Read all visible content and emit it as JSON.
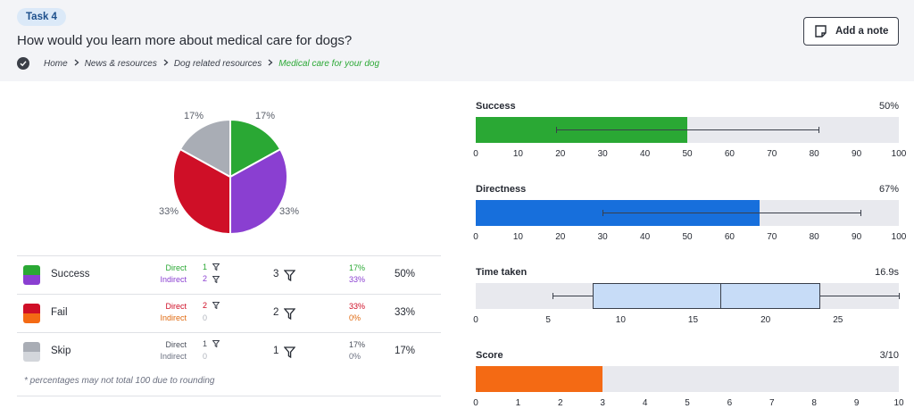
{
  "header": {
    "task_label": "Task 4",
    "question": "How would you learn more about medical care for dogs?",
    "breadcrumb": [
      "Home",
      "News & resources",
      "Dog related resources",
      "Medical care for your dog"
    ],
    "add_note_label": "Add a note"
  },
  "pie": {
    "labels": [
      "17%",
      "17%",
      "33%",
      "33%"
    ],
    "slices": [
      {
        "value": 17,
        "color": "#2aa834"
      },
      {
        "value": 33,
        "color": "#8a3fd1"
      },
      {
        "value": 33,
        "color": "#cf0f27"
      },
      {
        "value": 17,
        "color": "#a9adb5"
      }
    ]
  },
  "table": {
    "rows": [
      {
        "label": "Success",
        "direct_label": "Direct",
        "indirect_label": "Indirect",
        "direct_count": "1",
        "indirect_count": "2",
        "total": "3",
        "direct_pct": "17%",
        "indirect_pct": "33%",
        "overall_pct": "50%",
        "color_top": "#2aa834",
        "color_bottom": "#8a3fd1",
        "direct_color": "#2aa834",
        "indirect_color": "#8a3fd1"
      },
      {
        "label": "Fail",
        "direct_label": "Direct",
        "indirect_label": "Indirect",
        "direct_count": "2",
        "indirect_count": "0",
        "total": "2",
        "direct_pct": "33%",
        "indirect_pct": "0%",
        "overall_pct": "33%",
        "color_top": "#cf0f27",
        "color_bottom": "#f46a14",
        "direct_color": "#cf0f27",
        "indirect_color": "#e06a10"
      },
      {
        "label": "Skip",
        "direct_label": "Direct",
        "indirect_label": "Indirect",
        "direct_count": "1",
        "indirect_count": "0",
        "total": "1",
        "direct_pct": "17%",
        "indirect_pct": "0%",
        "overall_pct": "17%",
        "color_top": "#a9adb5",
        "color_bottom": "#d3d6db",
        "direct_color": "#4a4f5a",
        "indirect_color": "#6b7080"
      }
    ],
    "footnote": "* percentages may not total 100 due to rounding"
  },
  "chart_data": [
    {
      "type": "bar",
      "title": "Success",
      "value_label": "50%",
      "value": 50,
      "whisker": [
        19,
        81
      ],
      "xlim": [
        0,
        100
      ],
      "ticks": [
        0,
        10,
        20,
        30,
        40,
        50,
        60,
        70,
        80,
        90,
        100
      ],
      "color": "#2aa834"
    },
    {
      "type": "bar",
      "title": "Directness",
      "value_label": "67%",
      "value": 67,
      "whisker": [
        30,
        91
      ],
      "xlim": [
        0,
        100
      ],
      "ticks": [
        0,
        10,
        20,
        30,
        40,
        50,
        60,
        70,
        80,
        90,
        100
      ],
      "color": "#176fdc"
    },
    {
      "type": "box",
      "title": "Time taken",
      "value_label": "16.9s",
      "min": 5.3,
      "q1": 8.1,
      "median": 16.9,
      "q3": 23.8,
      "max": 29.2,
      "xlim": [
        0,
        29.2
      ],
      "ticks": [
        0,
        5,
        10,
        15,
        20,
        25
      ],
      "color": "#c7dcf7"
    },
    {
      "type": "bar",
      "title": "Score",
      "value_label": "3/10",
      "value": 3,
      "xlim": [
        0,
        10
      ],
      "ticks": [
        0,
        1,
        2,
        3,
        4,
        5,
        6,
        7,
        8,
        9,
        10
      ],
      "color": "#f46a14"
    }
  ]
}
